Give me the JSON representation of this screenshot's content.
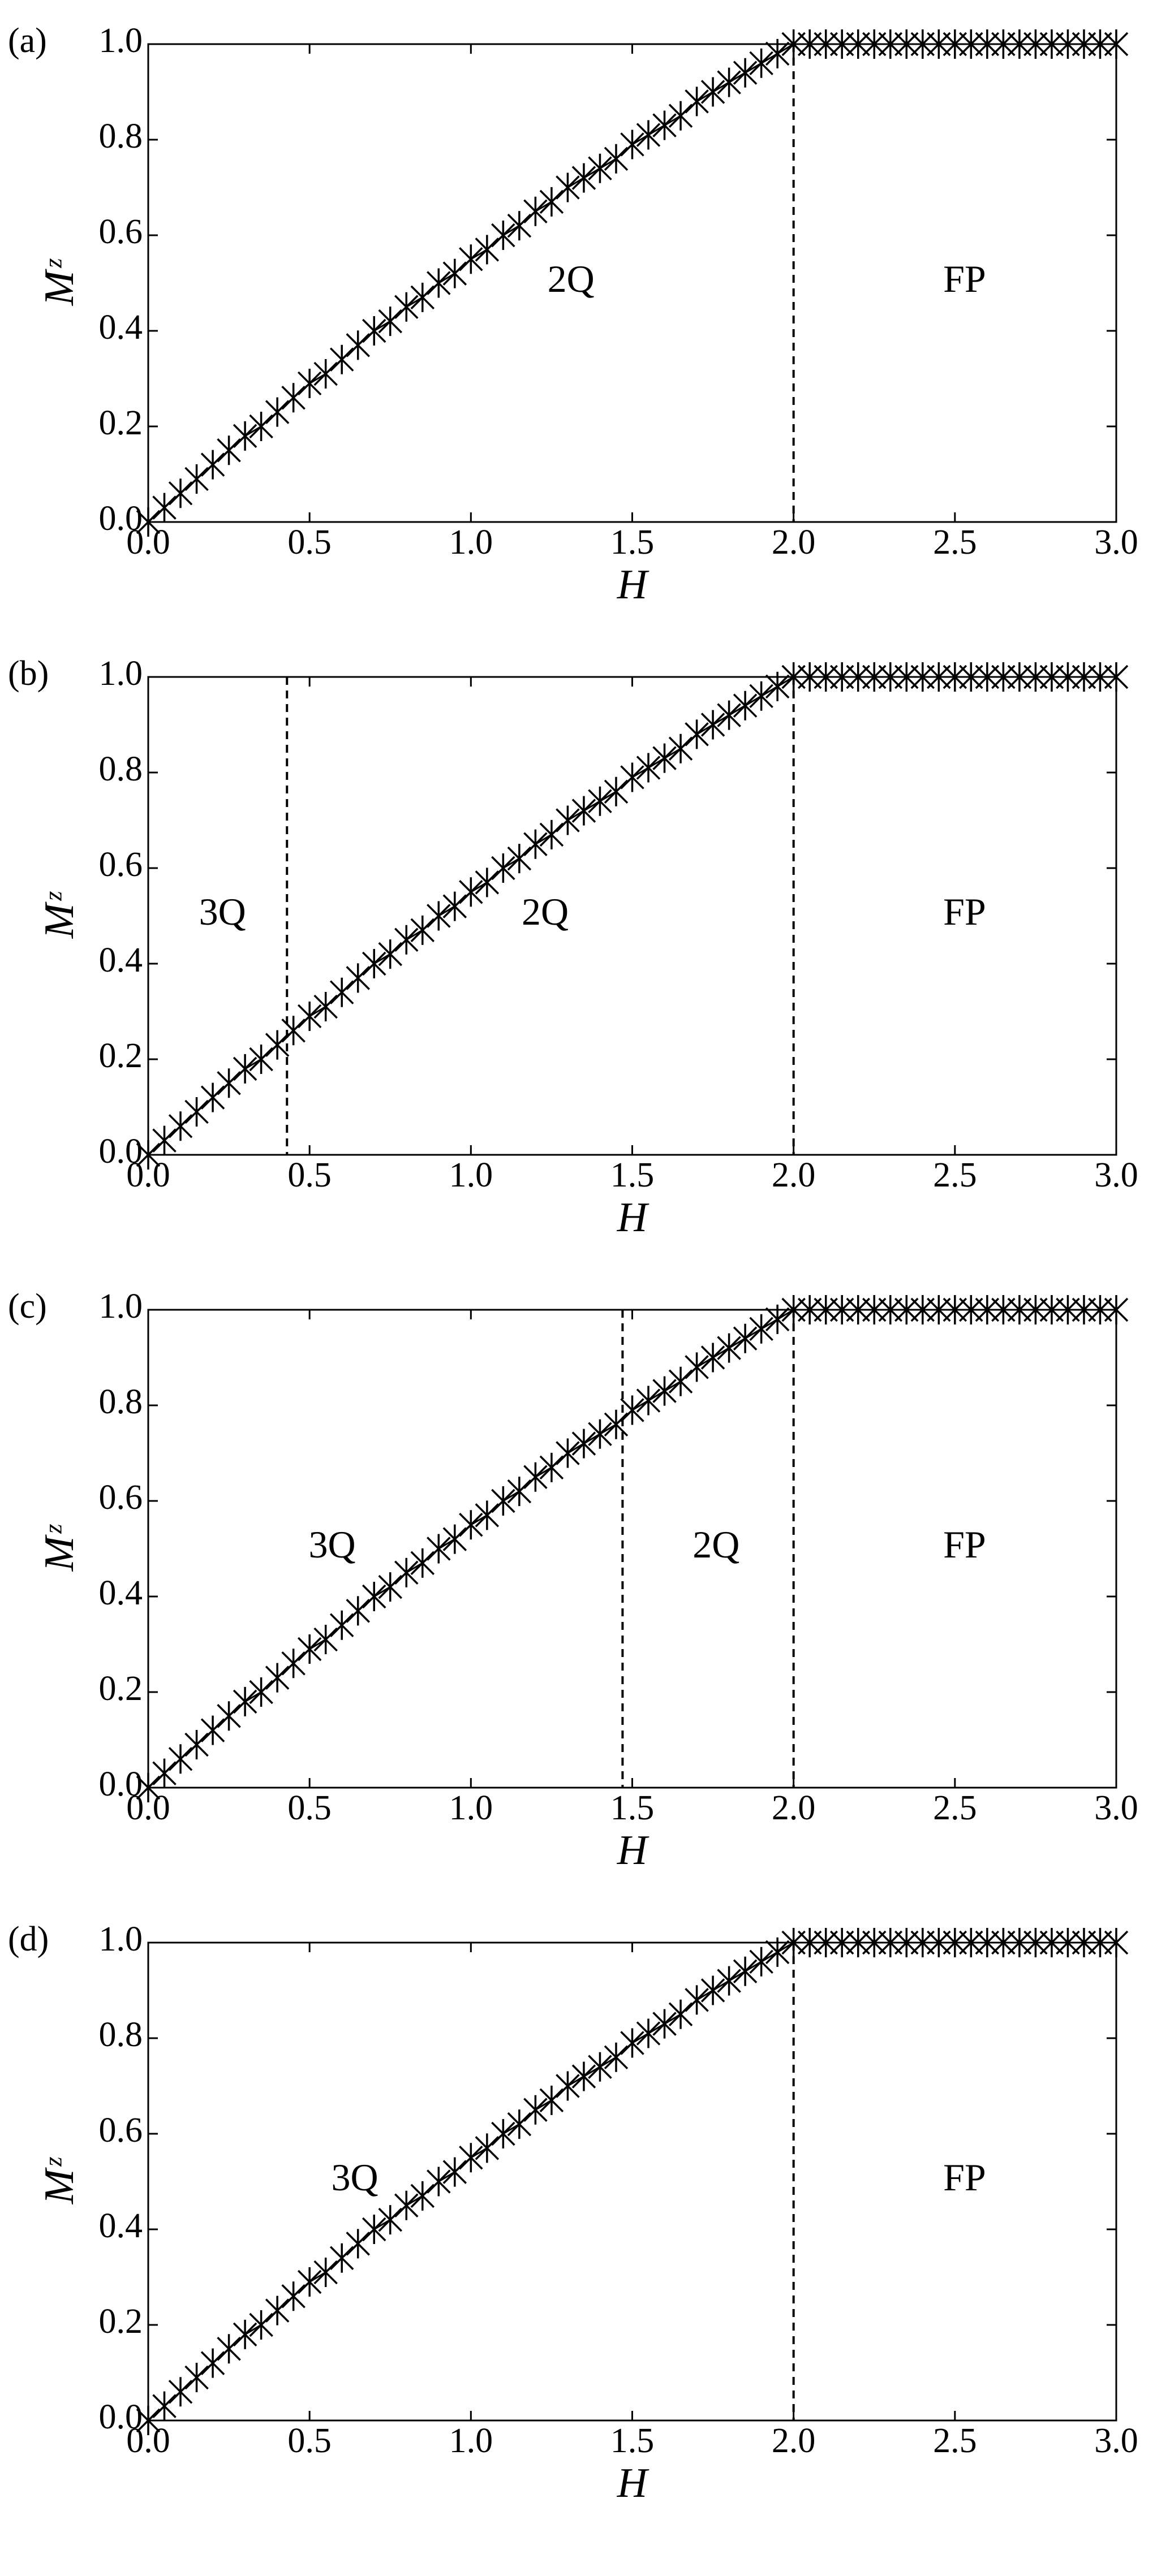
{
  "chart_data": [
    {
      "type": "line",
      "marker": "asterisk",
      "color": "#000000",
      "panel_label": "(a)",
      "xlabel": "H",
      "ylabel": "Mᶻ",
      "x": [
        0,
        0.05,
        0.1,
        0.15,
        0.2,
        0.25,
        0.3,
        0.35,
        0.4,
        0.45,
        0.5,
        0.55,
        0.6,
        0.65,
        0.7,
        0.75,
        0.8,
        0.85,
        0.9,
        0.95,
        1,
        1.05,
        1.1,
        1.15,
        1.2,
        1.25,
        1.3,
        1.35,
        1.4,
        1.45,
        1.5,
        1.55,
        1.6,
        1.65,
        1.7,
        1.75,
        1.8,
        1.85,
        1.9,
        1.95,
        2,
        2.05,
        2.1,
        2.15,
        2.2,
        2.25,
        2.3,
        2.35,
        2.4,
        2.45,
        2.5,
        2.55,
        2.6,
        2.65,
        2.7,
        2.75,
        2.8,
        2.85,
        2.9,
        2.95,
        3
      ],
      "values": [
        0,
        0.03,
        0.06,
        0.09,
        0.12,
        0.15,
        0.18,
        0.2,
        0.23,
        0.26,
        0.29,
        0.31,
        0.34,
        0.37,
        0.4,
        0.42,
        0.45,
        0.47,
        0.5,
        0.52,
        0.55,
        0.57,
        0.6,
        0.62,
        0.65,
        0.67,
        0.7,
        0.72,
        0.74,
        0.76,
        0.79,
        0.81,
        0.83,
        0.85,
        0.88,
        0.9,
        0.92,
        0.94,
        0.96,
        0.98,
        1,
        1,
        1,
        1,
        1,
        1,
        1,
        1,
        1,
        1,
        1,
        1,
        1,
        1,
        1,
        1,
        1,
        1,
        1,
        1,
        1
      ],
      "xlim": [
        0,
        3
      ],
      "ylim": [
        0,
        1
      ],
      "xticks": [
        {
          "value": 0,
          "label": "0.0"
        },
        {
          "value": 0.5,
          "label": "0.5"
        },
        {
          "value": 1,
          "label": "1.0"
        },
        {
          "value": 1.5,
          "label": "1.5"
        },
        {
          "value": 2,
          "label": "2.0"
        },
        {
          "value": 2.5,
          "label": "2.5"
        },
        {
          "value": 3,
          "label": "3.0"
        }
      ],
      "yticks": [
        {
          "value": 0,
          "label": "0.0"
        },
        {
          "value": 0.2,
          "label": "0.2"
        },
        {
          "value": 0.4,
          "label": "0.4"
        },
        {
          "value": 0.6,
          "label": "0.6"
        },
        {
          "value": 0.8,
          "label": "0.8"
        },
        {
          "value": 1,
          "label": "1.0"
        }
      ],
      "boundaries": [
        2
      ],
      "annotations": [
        {
          "text": "2Q",
          "x": 1.31,
          "y": 0.5
        },
        {
          "text": "FP",
          "x": 2.53,
          "y": 0.5
        }
      ]
    },
    {
      "type": "line",
      "marker": "asterisk",
      "color": "#000000",
      "panel_label": "(b)",
      "xlabel": "H",
      "ylabel": "Mᶻ",
      "x": [
        0,
        0.05,
        0.1,
        0.15,
        0.2,
        0.25,
        0.3,
        0.35,
        0.4,
        0.45,
        0.5,
        0.55,
        0.6,
        0.65,
        0.7,
        0.75,
        0.8,
        0.85,
        0.9,
        0.95,
        1,
        1.05,
        1.1,
        1.15,
        1.2,
        1.25,
        1.3,
        1.35,
        1.4,
        1.45,
        1.5,
        1.55,
        1.6,
        1.65,
        1.7,
        1.75,
        1.8,
        1.85,
        1.9,
        1.95,
        2,
        2.05,
        2.1,
        2.15,
        2.2,
        2.25,
        2.3,
        2.35,
        2.4,
        2.45,
        2.5,
        2.55,
        2.6,
        2.65,
        2.7,
        2.75,
        2.8,
        2.85,
        2.9,
        2.95,
        3
      ],
      "values": [
        0,
        0.03,
        0.06,
        0.09,
        0.12,
        0.15,
        0.18,
        0.2,
        0.23,
        0.26,
        0.29,
        0.31,
        0.34,
        0.37,
        0.4,
        0.42,
        0.45,
        0.47,
        0.5,
        0.52,
        0.55,
        0.57,
        0.6,
        0.62,
        0.65,
        0.67,
        0.7,
        0.72,
        0.74,
        0.76,
        0.79,
        0.81,
        0.83,
        0.85,
        0.88,
        0.9,
        0.92,
        0.94,
        0.96,
        0.98,
        1,
        1,
        1,
        1,
        1,
        1,
        1,
        1,
        1,
        1,
        1,
        1,
        1,
        1,
        1,
        1,
        1,
        1,
        1,
        1,
        1
      ],
      "xlim": [
        0,
        3
      ],
      "ylim": [
        0,
        1
      ],
      "xticks": [
        {
          "value": 0,
          "label": "0.0"
        },
        {
          "value": 0.5,
          "label": "0.5"
        },
        {
          "value": 1,
          "label": "1.0"
        },
        {
          "value": 1.5,
          "label": "1.5"
        },
        {
          "value": 2,
          "label": "2.0"
        },
        {
          "value": 2.5,
          "label": "2.5"
        },
        {
          "value": 3,
          "label": "3.0"
        }
      ],
      "yticks": [
        {
          "value": 0,
          "label": "0.0"
        },
        {
          "value": 0.2,
          "label": "0.2"
        },
        {
          "value": 0.4,
          "label": "0.4"
        },
        {
          "value": 0.6,
          "label": "0.6"
        },
        {
          "value": 0.8,
          "label": "0.8"
        },
        {
          "value": 1,
          "label": "1.0"
        }
      ],
      "boundaries": [
        0.43,
        2
      ],
      "annotations": [
        {
          "text": "3Q",
          "x": 0.23,
          "y": 0.5
        },
        {
          "text": "2Q",
          "x": 1.23,
          "y": 0.5
        },
        {
          "text": "FP",
          "x": 2.53,
          "y": 0.5
        }
      ]
    },
    {
      "type": "line",
      "marker": "asterisk",
      "color": "#000000",
      "panel_label": "(c)",
      "xlabel": "H",
      "ylabel": "Mᶻ",
      "x": [
        0,
        0.05,
        0.1,
        0.15,
        0.2,
        0.25,
        0.3,
        0.35,
        0.4,
        0.45,
        0.5,
        0.55,
        0.6,
        0.65,
        0.7,
        0.75,
        0.8,
        0.85,
        0.9,
        0.95,
        1,
        1.05,
        1.1,
        1.15,
        1.2,
        1.25,
        1.3,
        1.35,
        1.4,
        1.45,
        1.5,
        1.55,
        1.6,
        1.65,
        1.7,
        1.75,
        1.8,
        1.85,
        1.9,
        1.95,
        2,
        2.05,
        2.1,
        2.15,
        2.2,
        2.25,
        2.3,
        2.35,
        2.4,
        2.45,
        2.5,
        2.55,
        2.6,
        2.65,
        2.7,
        2.75,
        2.8,
        2.85,
        2.9,
        2.95,
        3
      ],
      "values": [
        0,
        0.03,
        0.06,
        0.09,
        0.12,
        0.15,
        0.18,
        0.2,
        0.23,
        0.26,
        0.29,
        0.31,
        0.34,
        0.37,
        0.4,
        0.42,
        0.45,
        0.47,
        0.5,
        0.52,
        0.55,
        0.57,
        0.6,
        0.62,
        0.65,
        0.67,
        0.7,
        0.72,
        0.74,
        0.76,
        0.79,
        0.81,
        0.83,
        0.85,
        0.88,
        0.9,
        0.92,
        0.94,
        0.96,
        0.98,
        1,
        1,
        1,
        1,
        1,
        1,
        1,
        1,
        1,
        1,
        1,
        1,
        1,
        1,
        1,
        1,
        1,
        1,
        1,
        1,
        1
      ],
      "xlim": [
        0,
        3
      ],
      "ylim": [
        0,
        1
      ],
      "xticks": [
        {
          "value": 0,
          "label": "0.0"
        },
        {
          "value": 0.5,
          "label": "0.5"
        },
        {
          "value": 1,
          "label": "1.0"
        },
        {
          "value": 1.5,
          "label": "1.5"
        },
        {
          "value": 2,
          "label": "2.0"
        },
        {
          "value": 2.5,
          "label": "2.5"
        },
        {
          "value": 3,
          "label": "3.0"
        }
      ],
      "yticks": [
        {
          "value": 0,
          "label": "0.0"
        },
        {
          "value": 0.2,
          "label": "0.2"
        },
        {
          "value": 0.4,
          "label": "0.4"
        },
        {
          "value": 0.6,
          "label": "0.6"
        },
        {
          "value": 0.8,
          "label": "0.8"
        },
        {
          "value": 1,
          "label": "1.0"
        }
      ],
      "boundaries": [
        1.47,
        2
      ],
      "annotations": [
        {
          "text": "3Q",
          "x": 0.57,
          "y": 0.5
        },
        {
          "text": "2Q",
          "x": 1.76,
          "y": 0.5
        },
        {
          "text": "FP",
          "x": 2.53,
          "y": 0.5
        }
      ]
    },
    {
      "type": "line",
      "marker": "asterisk",
      "color": "#000000",
      "panel_label": "(d)",
      "xlabel": "H",
      "ylabel": "Mᶻ",
      "x": [
        0,
        0.05,
        0.1,
        0.15,
        0.2,
        0.25,
        0.3,
        0.35,
        0.4,
        0.45,
        0.5,
        0.55,
        0.6,
        0.65,
        0.7,
        0.75,
        0.8,
        0.85,
        0.9,
        0.95,
        1,
        1.05,
        1.1,
        1.15,
        1.2,
        1.25,
        1.3,
        1.35,
        1.4,
        1.45,
        1.5,
        1.55,
        1.6,
        1.65,
        1.7,
        1.75,
        1.8,
        1.85,
        1.9,
        1.95,
        2,
        2.05,
        2.1,
        2.15,
        2.2,
        2.25,
        2.3,
        2.35,
        2.4,
        2.45,
        2.5,
        2.55,
        2.6,
        2.65,
        2.7,
        2.75,
        2.8,
        2.85,
        2.9,
        2.95,
        3
      ],
      "values": [
        0,
        0.03,
        0.06,
        0.09,
        0.12,
        0.15,
        0.18,
        0.2,
        0.23,
        0.26,
        0.29,
        0.31,
        0.34,
        0.37,
        0.4,
        0.42,
        0.45,
        0.47,
        0.5,
        0.52,
        0.55,
        0.57,
        0.6,
        0.62,
        0.65,
        0.67,
        0.7,
        0.72,
        0.74,
        0.76,
        0.79,
        0.81,
        0.83,
        0.85,
        0.88,
        0.9,
        0.92,
        0.94,
        0.96,
        0.98,
        1,
        1,
        1,
        1,
        1,
        1,
        1,
        1,
        1,
        1,
        1,
        1,
        1,
        1,
        1,
        1,
        1,
        1,
        1,
        1,
        1
      ],
      "xlim": [
        0,
        3
      ],
      "ylim": [
        0,
        1
      ],
      "xticks": [
        {
          "value": 0,
          "label": "0.0"
        },
        {
          "value": 0.5,
          "label": "0.5"
        },
        {
          "value": 1,
          "label": "1.0"
        },
        {
          "value": 1.5,
          "label": "1.5"
        },
        {
          "value": 2,
          "label": "2.0"
        },
        {
          "value": 2.5,
          "label": "2.5"
        },
        {
          "value": 3,
          "label": "3.0"
        }
      ],
      "yticks": [
        {
          "value": 0,
          "label": "0.0"
        },
        {
          "value": 0.2,
          "label": "0.2"
        },
        {
          "value": 0.4,
          "label": "0.4"
        },
        {
          "value": 0.6,
          "label": "0.6"
        },
        {
          "value": 0.8,
          "label": "0.8"
        },
        {
          "value": 1,
          "label": "1.0"
        }
      ],
      "boundaries": [
        2
      ],
      "annotations": [
        {
          "text": "3Q",
          "x": 0.64,
          "y": 0.5
        },
        {
          "text": "FP",
          "x": 2.53,
          "y": 0.5
        }
      ]
    }
  ]
}
